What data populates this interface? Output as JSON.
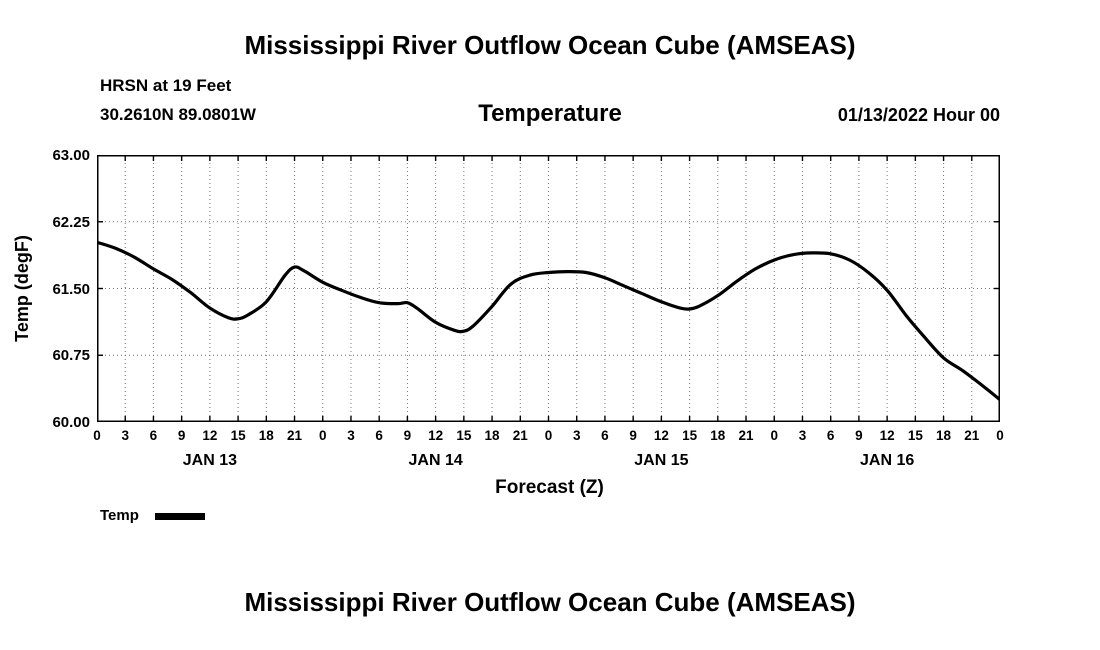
{
  "page": {
    "main_title": "Mississippi River Outflow Ocean Cube (AMSEAS)",
    "bottom_title": "Mississippi River Outflow Ocean Cube (AMSEAS)"
  },
  "header": {
    "station": "HRSN at 19 Feet",
    "coords": "30.2610N  89.0801W",
    "panel_title": "Temperature",
    "run_timestamp": "01/13/2022 Hour 00"
  },
  "legend": {
    "label": "Temp",
    "swatch_color": "#000000"
  },
  "chart_data": {
    "type": "line",
    "title": "Temperature",
    "xlabel": "Forecast (Z)",
    "ylabel": "Temp (degF)",
    "ylim": [
      60.0,
      63.0
    ],
    "yticks": [
      60.0,
      60.75,
      61.5,
      62.25,
      63.0
    ],
    "ytick_labels": [
      "60.00",
      "60.75",
      "61.50",
      "62.25",
      "63.00"
    ],
    "xlim": [
      0,
      96
    ],
    "xtick_step": 3,
    "xtick_labels": [
      "0",
      "3",
      "6",
      "9",
      "12",
      "15",
      "18",
      "21",
      "0",
      "3",
      "6",
      "9",
      "12",
      "15",
      "18",
      "21",
      "0",
      "3",
      "6",
      "9",
      "12",
      "15",
      "18",
      "21",
      "0",
      "3",
      "6",
      "9",
      "12",
      "15",
      "18",
      "21",
      "0"
    ],
    "day_labels": [
      {
        "label": "JAN 13",
        "hour": 12
      },
      {
        "label": "JAN 14",
        "hour": 36
      },
      {
        "label": "JAN 15",
        "hour": 60
      },
      {
        "label": "JAN 16",
        "hour": 84
      }
    ],
    "grid": true,
    "line_color": "#000000",
    "line_width": 3.2,
    "series": [
      {
        "name": "Temp",
        "x": [
          0,
          2,
          4,
          6,
          8,
          10,
          12,
          14,
          15,
          16,
          18,
          20,
          21,
          22,
          24,
          26,
          28,
          30,
          32,
          33,
          34,
          36,
          38,
          39,
          40,
          42,
          44,
          46,
          48,
          50,
          52,
          54,
          56,
          58,
          60,
          62,
          63,
          64,
          66,
          68,
          70,
          72,
          74,
          76,
          78,
          80,
          82,
          84,
          86,
          88,
          90,
          92,
          94,
          96
        ],
        "y": [
          62.02,
          61.95,
          61.85,
          61.72,
          61.6,
          61.45,
          61.28,
          61.17,
          61.16,
          61.2,
          61.35,
          61.65,
          61.74,
          61.7,
          61.57,
          61.48,
          61.4,
          61.34,
          61.33,
          61.34,
          61.28,
          61.12,
          61.03,
          61.02,
          61.08,
          61.3,
          61.55,
          61.65,
          61.68,
          61.69,
          61.68,
          61.62,
          61.53,
          61.44,
          61.35,
          61.28,
          61.27,
          61.3,
          61.42,
          61.58,
          61.72,
          61.82,
          61.88,
          61.9,
          61.89,
          61.82,
          61.68,
          61.48,
          61.2,
          60.95,
          60.72,
          60.58,
          60.42,
          60.25
        ]
      }
    ]
  }
}
